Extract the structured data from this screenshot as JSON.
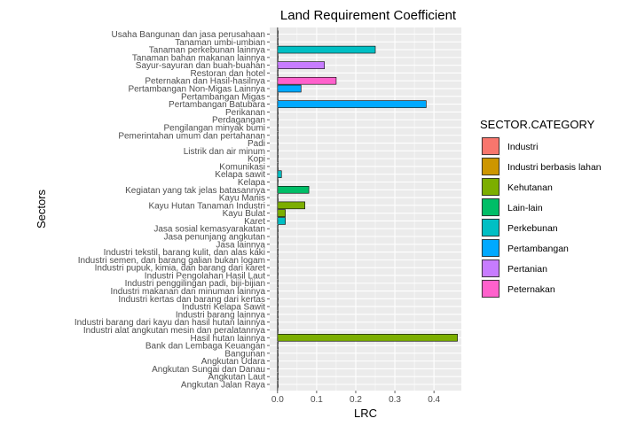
{
  "chart_data": {
    "type": "bar",
    "orientation": "horizontal",
    "title": "Land Requirement Coefficient",
    "xlabel": "LRC",
    "ylabel": "Sectors",
    "xlim": [
      -0.02,
      0.47
    ],
    "xticks": [
      "0.0",
      "0.1",
      "0.2",
      "0.3",
      "0.4"
    ],
    "xtick_values": [
      0.0,
      0.1,
      0.2,
      0.3,
      0.4
    ],
    "grid": true,
    "legend": {
      "title": "SECTOR.CATEGORY",
      "placement": "right",
      "entries": [
        {
          "name": "Industri",
          "color": "#F8766D"
        },
        {
          "name": "Industri berbasis lahan",
          "color": "#CD9600"
        },
        {
          "name": "Kehutanan",
          "color": "#7CAE00"
        },
        {
          "name": "Lain-lain",
          "color": "#00BE67"
        },
        {
          "name": "Perkebunan",
          "color": "#00BFC4"
        },
        {
          "name": "Pertambangan",
          "color": "#00A9FF"
        },
        {
          "name": "Pertanian",
          "color": "#C77CFF"
        },
        {
          "name": "Peternakan",
          "color": "#FF61CC"
        }
      ]
    },
    "categories": [
      "Usaha Bangunan dan jasa perusahaan",
      "Tanaman umbi-umbian",
      "Tanaman perkebunan lainnya",
      "Tanaman bahan makanan lainnya",
      "Sayur-sayuran dan buah-buahan",
      "Restoran dan hotel",
      "Peternakan dan Hasil-hasilnya",
      "Pertambangan Non-Migas Lainnya",
      "Pertambangan Migas",
      "Pertambangan Batubara",
      "Perikanan",
      "Perdagangan",
      "Pengilangan minyak bumi",
      "Pemerintahan umum dan pertahanan",
      "Padi",
      "Listrik dan air minum",
      "Kopi",
      "Komunikasi",
      "Kelapa sawit",
      "Kelapa",
      "Kegiatan yang tak jelas batasannya",
      "Kayu Manis",
      "Kayu Hutan Tanaman Industri",
      "Kayu Bulat",
      "Karet",
      "Jasa sosial kemasyarakatan",
      "Jasa penunjang angkutan",
      "Jasa lainnya",
      "Industri tekstil, barang kulit, dan alas kaki",
      "Industri semen, dan barang galian bukan logam",
      "Industri pupuk, kimia, dan barang dari karet",
      "Industri Pengolahan Hasil Laut",
      "Industri penggilingan padi, biji-bijian",
      "Industri makanan dan minuman lainnya",
      "Industri kertas dan barang dari kertas",
      "Industri Kelapa Sawit",
      "Industri barang lainnya",
      "Industri barang dari kayu dan hasil hutan lainnya",
      "Industri alat angkutan mesin dan peralatannya",
      "Hasil hutan lainnya",
      "Bank dan Lembaga Keuangan",
      "Bangunan",
      "Angkutan Udara",
      "Angkutan Sungai dan Danau",
      "Angkutan Laut",
      "Angkutan Jalan Raya"
    ],
    "values": [
      0,
      0,
      0.25,
      0,
      0.12,
      0,
      0.15,
      0.06,
      0,
      0.38,
      0,
      0,
      0,
      0,
      0,
      0,
      0,
      0,
      0.01,
      0,
      0.08,
      0,
      0.07,
      0.02,
      0.02,
      0,
      0,
      0,
      0,
      0,
      0,
      0,
      0,
      0,
      0,
      0,
      0,
      0,
      0,
      0.46,
      0,
      0,
      0,
      0,
      0,
      0
    ],
    "bar_colors": [
      "#00BE67",
      "#C77CFF",
      "#00BFC4",
      "#C77CFF",
      "#C77CFF",
      "#00BE67",
      "#FF61CC",
      "#00A9FF",
      "#00A9FF",
      "#00A9FF",
      "#FF61CC",
      "#00BE67",
      "#F8766D",
      "#00BE67",
      "#C77CFF",
      "#00BE67",
      "#00BFC4",
      "#00BE67",
      "#00BFC4",
      "#00BFC4",
      "#00BE67",
      "#00BFC4",
      "#7CAE00",
      "#7CAE00",
      "#00BFC4",
      "#00BE67",
      "#00BE67",
      "#00BE67",
      "#F8766D",
      "#F8766D",
      "#F8766D",
      "#CD9600",
      "#CD9600",
      "#CD9600",
      "#CD9600",
      "#CD9600",
      "#F8766D",
      "#CD9600",
      "#F8766D",
      "#7CAE00",
      "#00BE67",
      "#00BE67",
      "#00BE67",
      "#00BE67",
      "#00BE67",
      "#00BE67"
    ]
  }
}
